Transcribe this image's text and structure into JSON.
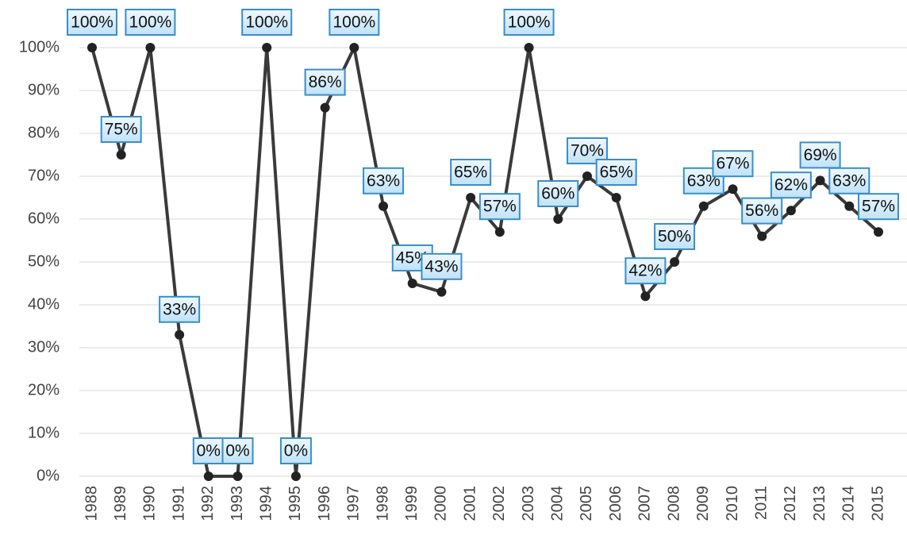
{
  "chart_data": {
    "type": "line",
    "categories": [
      "1988",
      "1989",
      "1990",
      "1991",
      "1992",
      "1993",
      "1994",
      "1995",
      "1996",
      "1997",
      "1998",
      "1999",
      "2000",
      "2001",
      "2002",
      "2003",
      "2004",
      "2005",
      "2006",
      "2007",
      "2008",
      "2009",
      "2010",
      "2011",
      "2012",
      "2013",
      "2014",
      "2015"
    ],
    "series": [
      {
        "name": "",
        "color": "#3a3a3a",
        "values": [
          100,
          75,
          100,
          33,
          0,
          0,
          100,
          0,
          86,
          100,
          63,
          45,
          43,
          65,
          57,
          100,
          60,
          70,
          65,
          42,
          50,
          63,
          67,
          56,
          62,
          69,
          63,
          57
        ],
        "value_labels": [
          "100%",
          "75%",
          "100%",
          "33%",
          "0%",
          "0%",
          "100%",
          "0%",
          "86%",
          "100%",
          "63%",
          "45%",
          "43%",
          "65%",
          "57%",
          "100%",
          "60%",
          "70%",
          "65%",
          "42%",
          "50%",
          "63%",
          "67%",
          "56%",
          "62%",
          "69%",
          "63%",
          "57%"
        ]
      }
    ],
    "ylim": [
      0,
      100
    ],
    "yticks": [
      {
        "value": 0,
        "label": "0%"
      },
      {
        "value": 10,
        "label": "10%"
      },
      {
        "value": 20,
        "label": "20%"
      },
      {
        "value": 30,
        "label": "30%"
      },
      {
        "value": 40,
        "label": "40%"
      },
      {
        "value": 50,
        "label": "50%"
      },
      {
        "value": 60,
        "label": "60%"
      },
      {
        "value": 70,
        "label": "70%"
      },
      {
        "value": 80,
        "label": "80%"
      },
      {
        "value": 90,
        "label": "90%"
      },
      {
        "value": 100,
        "label": "100%"
      }
    ],
    "grid": true
  }
}
